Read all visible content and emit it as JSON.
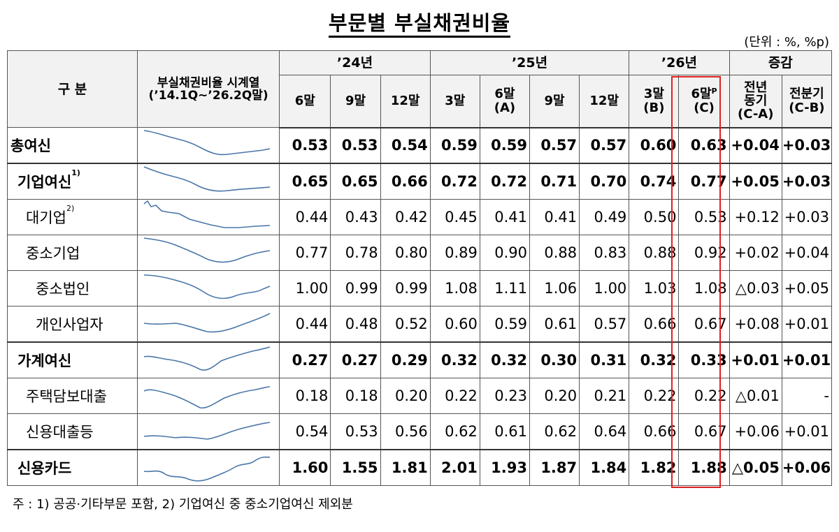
{
  "title": "부문별 부실채권비율",
  "unit": "(단위 : %, %p)",
  "header": {
    "category": "구  분",
    "series_line1": "부실채권비율 시계열",
    "series_line2": "(’14.1Q~’26.2Q말)",
    "year_24": "’24년",
    "year_25": "’25년",
    "year_26": "’26년",
    "change": "증감",
    "cols": {
      "c24_6": "6말",
      "c24_9": "9말",
      "c24_12": "12말",
      "c25_3": "3말",
      "c25_6_a": "6말",
      "c25_6_b": "(A)",
      "c25_9": "9말",
      "c25_12": "12말",
      "c26_3_a": "3말",
      "c26_3_b": "(B)",
      "c26_6_a": "6말",
      "c26_6_sup": "P",
      "c26_6_b": "(C)",
      "yoy_1": "전년",
      "yoy_2": "동기",
      "yoy_3": "(C-A)",
      "qoq_1": "전분기",
      "qoq_2": "(C-B)"
    }
  },
  "rows": [
    {
      "label": "총여신",
      "sup": "",
      "values": [
        "0.53",
        "0.53",
        "0.54",
        "0.59",
        "0.59",
        "0.57",
        "0.57",
        "0.60",
        "0.63",
        "+0.04",
        "+0.03"
      ]
    },
    {
      "label": "기업여신",
      "sup": "1)",
      "values": [
        "0.65",
        "0.65",
        "0.66",
        "0.72",
        "0.72",
        "0.71",
        "0.70",
        "0.74",
        "0.77",
        "+0.05",
        "+0.03"
      ]
    },
    {
      "label": "대기업",
      "sup": "2)",
      "values": [
        "0.44",
        "0.43",
        "0.42",
        "0.45",
        "0.41",
        "0.41",
        "0.49",
        "0.50",
        "0.53",
        "+0.12",
        "+0.03"
      ]
    },
    {
      "label": "중소기업",
      "sup": "",
      "values": [
        "0.77",
        "0.78",
        "0.80",
        "0.89",
        "0.90",
        "0.88",
        "0.83",
        "0.88",
        "0.92",
        "+0.02",
        "+0.04"
      ]
    },
    {
      "label": "중소법인",
      "sup": "",
      "values": [
        "1.00",
        "0.99",
        "0.99",
        "1.08",
        "1.11",
        "1.06",
        "1.00",
        "1.03",
        "1.08",
        "△0.03",
        "+0.05"
      ]
    },
    {
      "label": "개인사업자",
      "sup": "",
      "values": [
        "0.44",
        "0.48",
        "0.52",
        "0.60",
        "0.59",
        "0.61",
        "0.57",
        "0.66",
        "0.67",
        "+0.08",
        "+0.01"
      ]
    },
    {
      "label": "가계여신",
      "sup": "",
      "values": [
        "0.27",
        "0.27",
        "0.29",
        "0.32",
        "0.32",
        "0.30",
        "0.31",
        "0.32",
        "0.33",
        "+0.01",
        "+0.01"
      ]
    },
    {
      "label": "주택담보대출",
      "sup": "",
      "values": [
        "0.18",
        "0.18",
        "0.20",
        "0.22",
        "0.23",
        "0.20",
        "0.21",
        "0.22",
        "0.22",
        "△0.01",
        "-"
      ]
    },
    {
      "label": "신용대출등",
      "sup": "",
      "values": [
        "0.54",
        "0.53",
        "0.56",
        "0.62",
        "0.61",
        "0.62",
        "0.64",
        "0.66",
        "0.67",
        "+0.06",
        "+0.01"
      ]
    },
    {
      "label": "신용카드",
      "sup": "",
      "values": [
        "1.60",
        "1.55",
        "1.81",
        "2.01",
        "1.93",
        "1.87",
        "1.84",
        "1.82",
        "1.88",
        "△0.05",
        "+0.06"
      ]
    }
  ],
  "footnote": "주 : 1) 공공·기타부문 포함,   2) 기업여신 중 중소기업여신 제외분",
  "colors": {
    "highlight": "#e02020",
    "sparkline": "#4a76a8"
  }
}
